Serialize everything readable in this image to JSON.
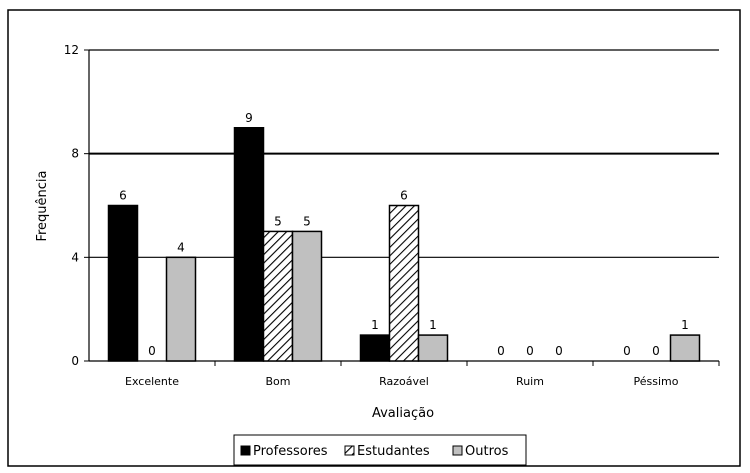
{
  "chart_data": {
    "type": "bar",
    "title": "",
    "xlabel": "Avaliação",
    "ylabel": "Frequência",
    "ylim": [
      0,
      12
    ],
    "yticks": [
      0,
      4,
      8,
      12
    ],
    "grid": true,
    "legend_position": "bottom",
    "categories": [
      "Excelente",
      "Bom",
      "Razoável",
      "Ruim",
      "Péssimo"
    ],
    "series": [
      {
        "name": "Professores",
        "values": [
          6,
          9,
          1,
          0,
          0
        ],
        "color": "#000000",
        "fill": "solid"
      },
      {
        "name": "Estudantes",
        "values": [
          0,
          5,
          6,
          0,
          0
        ],
        "color": "#000000",
        "fill": "diagonal-hatch"
      },
      {
        "name": "Outros",
        "values": [
          4,
          5,
          1,
          0,
          1
        ],
        "color": "#c0c0c0",
        "fill": "solid"
      }
    ]
  }
}
